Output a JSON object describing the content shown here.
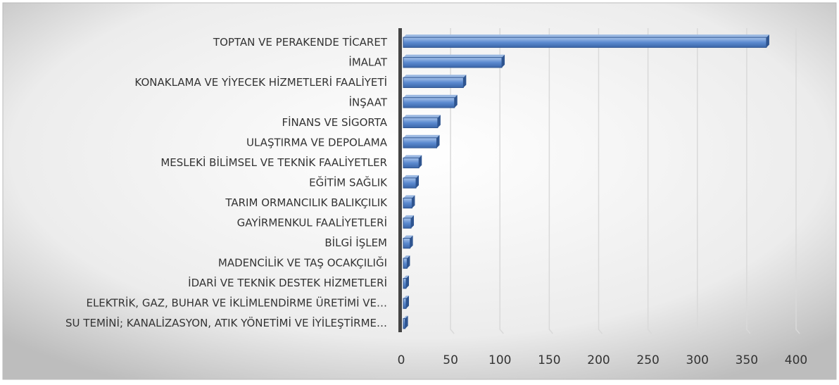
{
  "chart_data": {
    "type": "bar",
    "orientation": "horizontal",
    "categories": [
      "TOPTAN VE PERAKENDE TİCARET",
      "İMALAT",
      "KONAKLAMA VE YİYECEK HİZMETLERİ FAALİYETİ",
      "İNŞAAT",
      "FİNANS VE SİGORTA",
      "ULAŞTIRMA VE DEPOLAMA",
      "MESLEKİ BİLİMSEL VE TEKNİK FAALİYETLER",
      "EĞİTİM SAĞLIK",
      "TARIM ORMANCILIK BALIKÇILIK",
      "GAYİRMENKUL FAALİYETLERİ",
      "BİLGİ İŞLEM",
      "MADENCİLİK VE TAŞ OCAKÇILIĞI",
      "İDARİ VE TEKNİK DESTEK HİZMETLERİ",
      "ELEKTRİK, GAZ, BUHAR VE İKLİMLENDİRME ÜRETİMİ VE…",
      "SU TEMİNİ; KANALİZASYON, ATIK YÖNETİMİ VE İYİLEŞTİRME…"
    ],
    "values": [
      370,
      102,
      63,
      54,
      37,
      36,
      18,
      15,
      11,
      10,
      9,
      6,
      5,
      5,
      4
    ],
    "color": "#4f81bd",
    "xlim": [
      0,
      400
    ],
    "xticks": [
      0,
      50,
      100,
      150,
      200,
      250,
      300,
      350,
      400
    ],
    "grid": true
  }
}
